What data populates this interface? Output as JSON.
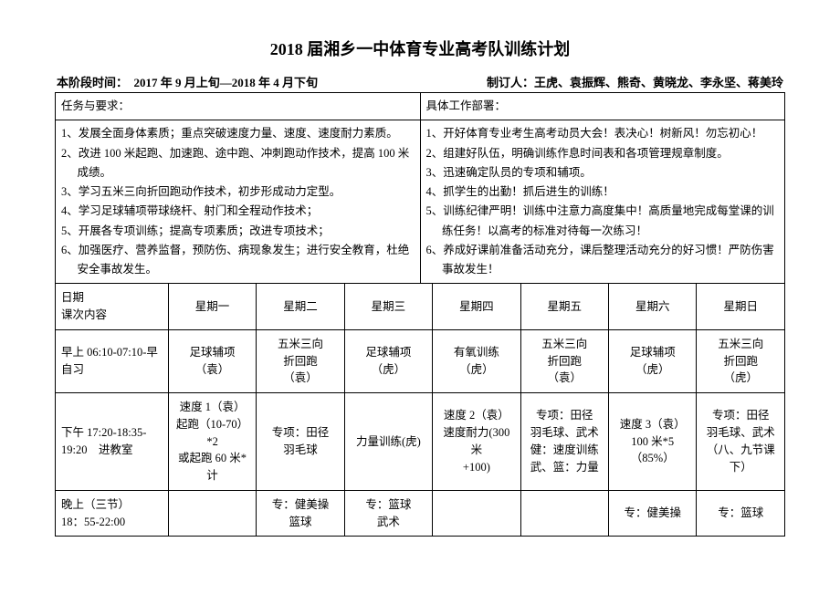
{
  "title": "2018 届湘乡一中体育专业高考队训练计划",
  "header": {
    "period_label": "本阶段时间：　2017 年 9 月上旬—2018 年 4 月下旬",
    "authors_label": "制订人：王虎、袁振辉、熊奇、黄晓龙、李永坚、蒋美玲"
  },
  "top_table": {
    "left_head": "任务与要求：",
    "right_head": "具体工作部署：",
    "tasks": [
      "1、发展全面身体素质；重点突破速度力量、速度、速度耐力素质。",
      "2、改进 100 米起跑、加速跑、途中跑、冲刺跑动作技术，提高 100 米成绩。",
      "3、学习五米三向折回跑动作技术，初步形成动力定型。",
      "4、学习足球辅项带球绕杆、射门和全程动作技术；",
      "5、开展各专项训练；提高专项素质；改进专项技术；",
      "6、加强医疗、营养监督，预防伤、病现象发生；进行安全教育，杜绝安全事故发生。"
    ],
    "works": [
      "1、开好体育专业考生高考动员大会！表决心！树新风！勿忘初心！",
      "2、组建好队伍，明确训练作息时间表和各项管理规章制度。",
      "3、迅速确定队员的专项和辅项。",
      "4、抓学生的出勤！抓后进生的训练！",
      "5、训练纪律严明！训练中注意力高度集中！高质量地完成每堂课的训练任务！以高考的标准对待每一次练习！",
      "6、养成好课前准备活动充分，课后整理活动充分的好习惯！严防伤害事故发生！"
    ]
  },
  "schedule": {
    "row0": {
      "c0a": "日期",
      "c0b": "课次内容",
      "days": [
        "星期一",
        "星期二",
        "星期三",
        "星期四",
        "星期五",
        "星期六",
        "星期日"
      ]
    },
    "rows": [
      {
        "head": "早上 06:10-07:10-早自习",
        "cells": [
          "足球辅项\n（袁）",
          "五米三向\n折回跑\n（袁）",
          "足球辅项\n（虎）",
          "有氧训练\n（虎）",
          "五米三向\n折回跑\n（袁）",
          "足球辅项\n（虎）",
          "五米三向\n折回跑\n（虎）"
        ]
      },
      {
        "head": "下午 17:20-18:35-19:20　进教室",
        "cells": [
          "速度 1（袁）\n起跑（10-70）*2\n或起跑 60 米*计",
          "专项：田径\n羽毛球",
          "力量训练(虎)",
          "速度 2（袁）\n速度耐力(300 米\n+100)",
          "专项：田径\n羽毛球、武术\n健：速度训练\n武、篮：力量",
          "速度 3（袁）\n100 米*5（85%）",
          "专项：田径\n羽毛球、武术\n（八、九节课下）"
        ]
      },
      {
        "head": "晚上（三节）\n18：55-22:00",
        "cells": [
          "",
          "专：健美操\n篮球",
          "专：篮球\n武术",
          "",
          "",
          "专：健美操",
          "专：篮球"
        ]
      }
    ]
  },
  "layout": {
    "col_widths_pct": [
      15.5,
      12.07,
      12.07,
      12.07,
      12.07,
      12.07,
      12.07,
      12.07
    ]
  }
}
